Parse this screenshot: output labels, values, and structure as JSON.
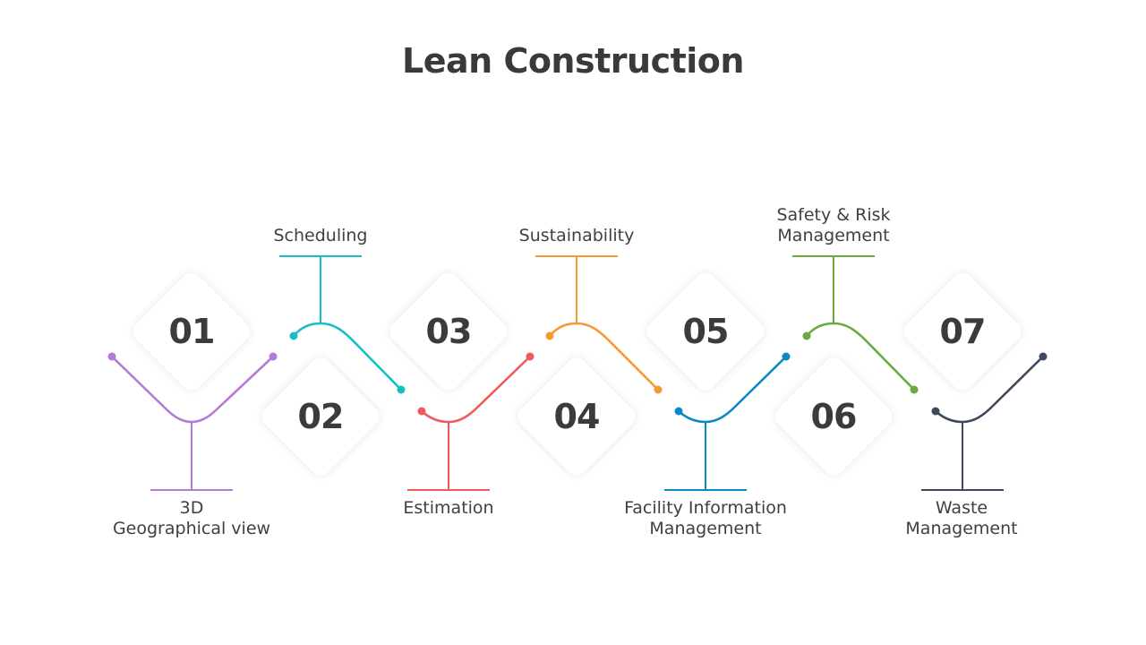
{
  "title": "Lean Construction",
  "steps": [
    {
      "number": "01",
      "label": "3D\nGeographical view",
      "color": "#b57ad8"
    },
    {
      "number": "02",
      "label": "Scheduling",
      "color": "#18bec4"
    },
    {
      "number": "03",
      "label": "Estimation",
      "color": "#f05a5a"
    },
    {
      "number": "04",
      "label": "Sustainability",
      "color": "#f59a33"
    },
    {
      "number": "05",
      "label": "Facility Information\nManagement",
      "color": "#0a8ac4"
    },
    {
      "number": "06",
      "label": "Safety & Risk\nManagement",
      "color": "#6aaa3f"
    },
    {
      "number": "07",
      "label": "Waste\nManagement",
      "color": "#3f4a5f"
    }
  ]
}
